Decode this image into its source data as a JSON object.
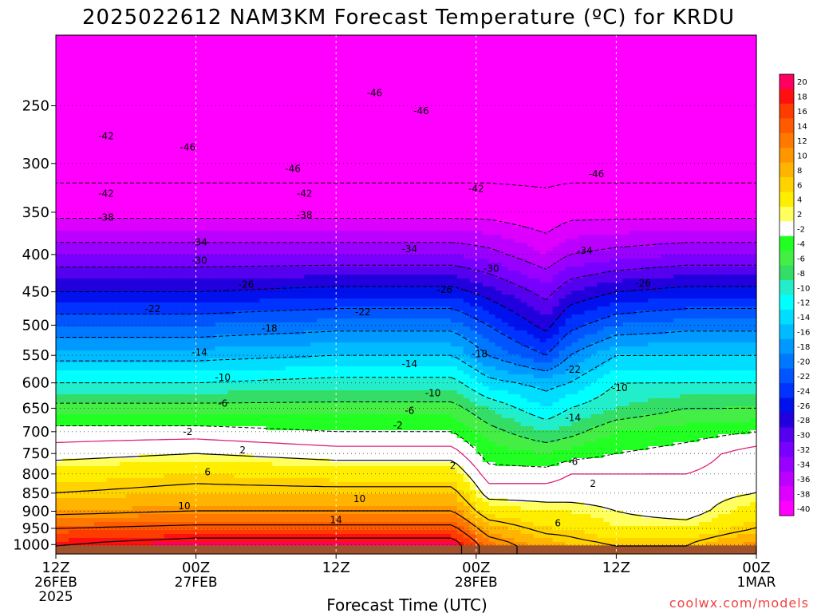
{
  "title": "2025022612 NAM3KM Forecast Temperature (ºC) for KRDU",
  "xlabel": "Forecast Time (UTC)",
  "credit": "coolwx.com/models",
  "colors": {
    "credit": "#ee4444",
    "ground": "#a0522d",
    "freezing_line": "#dd2277"
  },
  "chart_data": {
    "type": "heatmap",
    "title": "2025022612 NAM3KM Forecast Temperature (ºC) for KRDU",
    "xlabel": "Forecast Time (UTC)",
    "ylabel": "",
    "y_axis": {
      "scale": "log-pressure",
      "inverted": true,
      "range_hpa": [
        1030,
        200
      ],
      "ticks": [
        250,
        300,
        350,
        400,
        450,
        500,
        550,
        600,
        650,
        700,
        750,
        800,
        850,
        900,
        950,
        1000
      ]
    },
    "x_axis": {
      "range_hours": [
        0,
        60
      ],
      "ticks": [
        {
          "hour": 0,
          "lines": [
            "12Z",
            "26FEB",
            "2025"
          ]
        },
        {
          "hour": 12,
          "lines": [
            "00Z",
            "27FEB"
          ]
        },
        {
          "hour": 24,
          "lines": [
            "12Z"
          ]
        },
        {
          "hour": 36,
          "lines": [
            "00Z",
            "28FEB"
          ]
        },
        {
          "hour": 48,
          "lines": [
            "12Z"
          ]
        },
        {
          "hour": 60,
          "lines": [
            "00Z",
            "1MAR"
          ]
        }
      ]
    },
    "grid": true,
    "colorbar": {
      "placement": "right",
      "labels": [
        "20",
        "18",
        "16",
        "14",
        "12",
        "10",
        "8",
        "6",
        "4",
        "2",
        "-2",
        "-4",
        "-6",
        "-8",
        "-10",
        "-12",
        "-14",
        "-16",
        "-18",
        "-20",
        "-22",
        "-24",
        "-26",
        "-28",
        "-30",
        "-32",
        "-34",
        "-36",
        "-38",
        "-40"
      ],
      "colors": [
        "#ff0060",
        "#ff1010",
        "#ff3c00",
        "#ff5a00",
        "#ff7800",
        "#ff9600",
        "#ffb400",
        "#ffd200",
        "#ffee00",
        "#ffff60",
        "#ffffff",
        "#22ff22",
        "#44ee44",
        "#33dd66",
        "#22eecc",
        "#00ffff",
        "#00ddff",
        "#00bbff",
        "#0099ff",
        "#0077ff",
        "#0055ff",
        "#0033ff",
        "#0011ee",
        "#2200dd",
        "#5500ee",
        "#7700ff",
        "#9900ff",
        "#bb00ff",
        "#dd00ff",
        "#ff00ff"
      ]
    },
    "temperature_profiles": {
      "hours": [
        0,
        12,
        24,
        34,
        37,
        42,
        44,
        48,
        54,
        60
      ],
      "levels_hpa": [
        1000,
        950,
        900,
        850,
        800,
        750,
        700,
        650,
        600,
        550,
        500,
        450,
        400,
        350,
        300,
        250,
        200
      ],
      "temperature_c": [
        [
          18,
          14,
          9,
          6,
          4,
          1,
          -1,
          -5,
          -10,
          -15,
          -20,
          -26,
          -32,
          -39,
          -44,
          -44,
          -46
        ],
        [
          20,
          15,
          10,
          7,
          5,
          2,
          -1,
          -5,
          -10,
          -15,
          -20,
          -26,
          -32,
          -39,
          -44,
          -44,
          -46
        ],
        [
          20,
          15,
          10,
          7,
          4,
          1,
          -2,
          -5,
          -9,
          -14,
          -19,
          -25,
          -32,
          -39,
          -44,
          -44,
          -46
        ],
        [
          20,
          15,
          10,
          7,
          4,
          1,
          -2,
          -5,
          -9,
          -14,
          -19,
          -25,
          -32,
          -39,
          -44,
          -44,
          -46
        ],
        [
          12,
          8,
          4,
          1,
          -1,
          -3,
          -5,
          -8,
          -13,
          -18,
          -22,
          -27,
          -33,
          -39,
          -44,
          -44,
          -46
        ],
        [
          8,
          5,
          3,
          1,
          -1,
          -4,
          -8,
          -12,
          -15,
          -22,
          -27,
          -31,
          -36,
          -40,
          -44,
          -44,
          -46
        ],
        [
          7,
          5,
          3,
          1,
          0,
          -3,
          -7,
          -10,
          -14,
          -18,
          -23,
          -28,
          -34,
          -39,
          -44,
          -44,
          -46
        ],
        [
          6,
          3,
          2,
          1,
          0,
          -2,
          -4,
          -8,
          -10,
          -14,
          -20,
          -26,
          -33,
          -39,
          -44,
          -44,
          -46
        ],
        [
          6,
          3,
          1,
          1,
          0,
          -1,
          -3,
          -6,
          -10,
          -14,
          -19,
          -25,
          -32,
          -39,
          -44,
          -44,
          -46
        ],
        [
          10,
          6,
          4,
          2,
          1,
          1,
          -2,
          -6,
          -10,
          -14,
          -19,
          -25,
          -32,
          -39,
          -44,
          -44,
          -46
        ]
      ]
    },
    "contour_labels": [
      {
        "text": "-42",
        "hour": 4.3,
        "hpa": 275
      },
      {
        "text": "-46",
        "hour": 11.3,
        "hpa": 285
      },
      {
        "text": "-46",
        "hour": 20.3,
        "hpa": 305
      },
      {
        "text": "-46",
        "hour": 27.3,
        "hpa": 240
      },
      {
        "text": "-46",
        "hour": 31.3,
        "hpa": 254
      },
      {
        "text": "-46",
        "hour": 46.3,
        "hpa": 310
      },
      {
        "text": "-42",
        "hour": 4.3,
        "hpa": 330
      },
      {
        "text": "-42",
        "hour": 21.3,
        "hpa": 330
      },
      {
        "text": "-42",
        "hour": 36,
        "hpa": 325
      },
      {
        "text": "-38",
        "hour": 4.3,
        "hpa": 356
      },
      {
        "text": "-38",
        "hour": 21.3,
        "hpa": 353
      },
      {
        "text": "-34",
        "hour": 12.3,
        "hpa": 385
      },
      {
        "text": "-34",
        "hour": 30.3,
        "hpa": 393
      },
      {
        "text": "-34",
        "hour": 45.3,
        "hpa": 395
      },
      {
        "text": "-30",
        "hour": 12.3,
        "hpa": 408
      },
      {
        "text": "-30",
        "hour": 37.3,
        "hpa": 418
      },
      {
        "text": "-26",
        "hour": 16.3,
        "hpa": 440
      },
      {
        "text": "-26",
        "hour": 33.3,
        "hpa": 447
      },
      {
        "text": "-26",
        "hour": 50.3,
        "hpa": 438
      },
      {
        "text": "-22",
        "hour": 8.3,
        "hpa": 475
      },
      {
        "text": "-22",
        "hour": 26.3,
        "hpa": 480
      },
      {
        "text": "-22",
        "hour": 44.3,
        "hpa": 575
      },
      {
        "text": "-18",
        "hour": 18.3,
        "hpa": 505
      },
      {
        "text": "-18",
        "hour": 36.3,
        "hpa": 548
      },
      {
        "text": "-14",
        "hour": 12.3,
        "hpa": 545
      },
      {
        "text": "-14",
        "hour": 30.3,
        "hpa": 565
      },
      {
        "text": "-14",
        "hour": 44.3,
        "hpa": 670
      },
      {
        "text": "-10",
        "hour": 14.3,
        "hpa": 590
      },
      {
        "text": "-10",
        "hour": 32.3,
        "hpa": 620
      },
      {
        "text": "-10",
        "hour": 48.3,
        "hpa": 610
      },
      {
        "text": "-6",
        "hour": 14.3,
        "hpa": 640
      },
      {
        "text": "-6",
        "hour": 30.3,
        "hpa": 655
      },
      {
        "text": "-6",
        "hour": 44.3,
        "hpa": 770
      },
      {
        "text": "-2",
        "hour": 11.3,
        "hpa": 700
      },
      {
        "text": "-2",
        "hour": 29.3,
        "hpa": 686
      },
      {
        "text": "2",
        "hour": 16,
        "hpa": 742
      },
      {
        "text": "2",
        "hour": 34,
        "hpa": 780
      },
      {
        "text": "2",
        "hour": 46,
        "hpa": 825
      },
      {
        "text": "6",
        "hour": 13,
        "hpa": 795
      },
      {
        "text": "6",
        "hour": 43,
        "hpa": 935
      },
      {
        "text": "10",
        "hour": 11,
        "hpa": 885
      },
      {
        "text": "10",
        "hour": 26,
        "hpa": 865
      },
      {
        "text": "14",
        "hour": 24,
        "hpa": 925
      }
    ]
  }
}
